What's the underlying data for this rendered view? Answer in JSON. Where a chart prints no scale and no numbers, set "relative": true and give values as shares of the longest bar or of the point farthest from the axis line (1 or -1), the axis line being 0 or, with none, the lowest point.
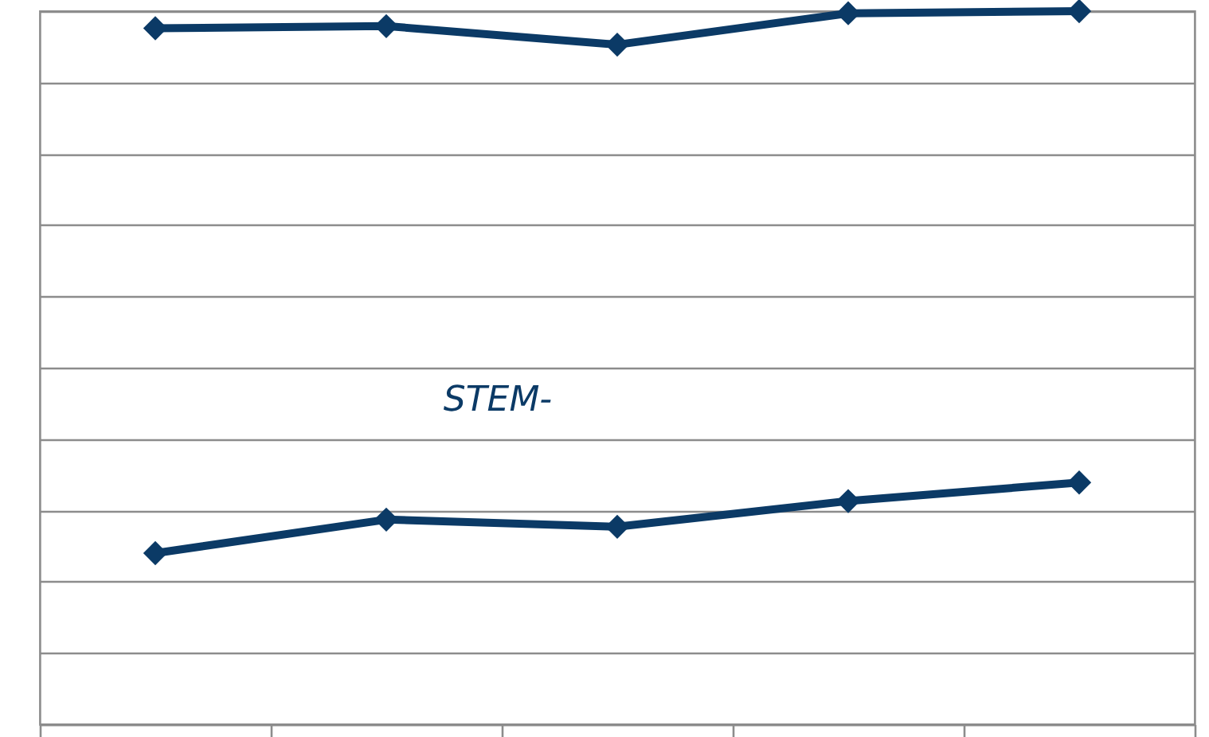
{
  "chart_data": {
    "type": "line",
    "relative": true,
    "categories": [
      null,
      null,
      null,
      null,
      null
    ],
    "grid": "y",
    "marker": "diamond",
    "line_style": "solid",
    "series": [
      {
        "color": "#0b3a66",
        "values": [
          0.976,
          0.979,
          0.953,
          0.997,
          1
        ]
      },
      {
        "name": "STEM-",
        "color": "#0b3a66",
        "values": [
          0.24,
          0.287,
          0.277,
          0.313,
          0.339
        ]
      }
    ]
  }
}
